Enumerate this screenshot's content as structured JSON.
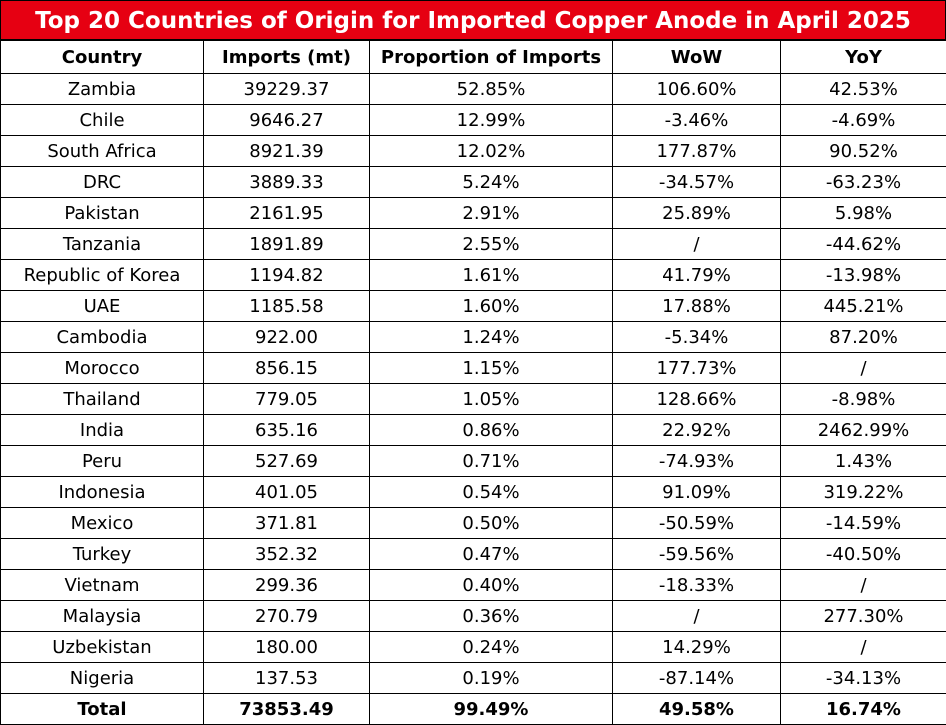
{
  "title": "Top 20 Countries of Origin for Imported Copper Anode in April 2025",
  "table": {
    "header": [
      "Country",
      "Imports (mt)",
      "Proportion of Imports",
      "WoW",
      "YoY"
    ],
    "rows": [
      [
        "Zambia",
        "39229.37",
        "52.85%",
        "106.60%",
        "42.53%"
      ],
      [
        "Chile",
        "9646.27",
        "12.99%",
        "-3.46%",
        "-4.69%"
      ],
      [
        "South Africa",
        "8921.39",
        "12.02%",
        "177.87%",
        "90.52%"
      ],
      [
        "DRC",
        "3889.33",
        "5.24%",
        "-34.57%",
        "-63.23%"
      ],
      [
        "Pakistan",
        "2161.95",
        "2.91%",
        "25.89%",
        "5.98%"
      ],
      [
        "Tanzania",
        "1891.89",
        "2.55%",
        "/",
        "-44.62%"
      ],
      [
        "Republic of Korea",
        "1194.82",
        "1.61%",
        "41.79%",
        "-13.98%"
      ],
      [
        "UAE",
        "1185.58",
        "1.60%",
        "17.88%",
        "445.21%"
      ],
      [
        "Cambodia",
        "922.00",
        "1.24%",
        "-5.34%",
        "87.20%"
      ],
      [
        "Morocco",
        "856.15",
        "1.15%",
        "177.73%",
        "/"
      ],
      [
        "Thailand",
        "779.05",
        "1.05%",
        "128.66%",
        "-8.98%"
      ],
      [
        "India",
        "635.16",
        "0.86%",
        "22.92%",
        "2462.99%"
      ],
      [
        "Peru",
        "527.69",
        "0.71%",
        "-74.93%",
        "1.43%"
      ],
      [
        "Indonesia",
        "401.05",
        "0.54%",
        "91.09%",
        "319.22%"
      ],
      [
        "Mexico",
        "371.81",
        "0.50%",
        "-50.59%",
        "-14.59%"
      ],
      [
        "Turkey",
        "352.32",
        "0.47%",
        "-59.56%",
        "-40.50%"
      ],
      [
        "Vietnam",
        "299.36",
        "0.40%",
        "-18.33%",
        "/"
      ],
      [
        "Malaysia",
        "270.79",
        "0.36%",
        "/",
        "277.30%"
      ],
      [
        "Uzbekistan",
        "180.00",
        "0.24%",
        "14.29%",
        "/"
      ],
      [
        "Nigeria",
        "137.53",
        "0.19%",
        "-87.14%",
        "-34.13%"
      ]
    ],
    "total": [
      "Total",
      "73853.49",
      "99.49%",
      "49.58%",
      "16.74%"
    ]
  }
}
